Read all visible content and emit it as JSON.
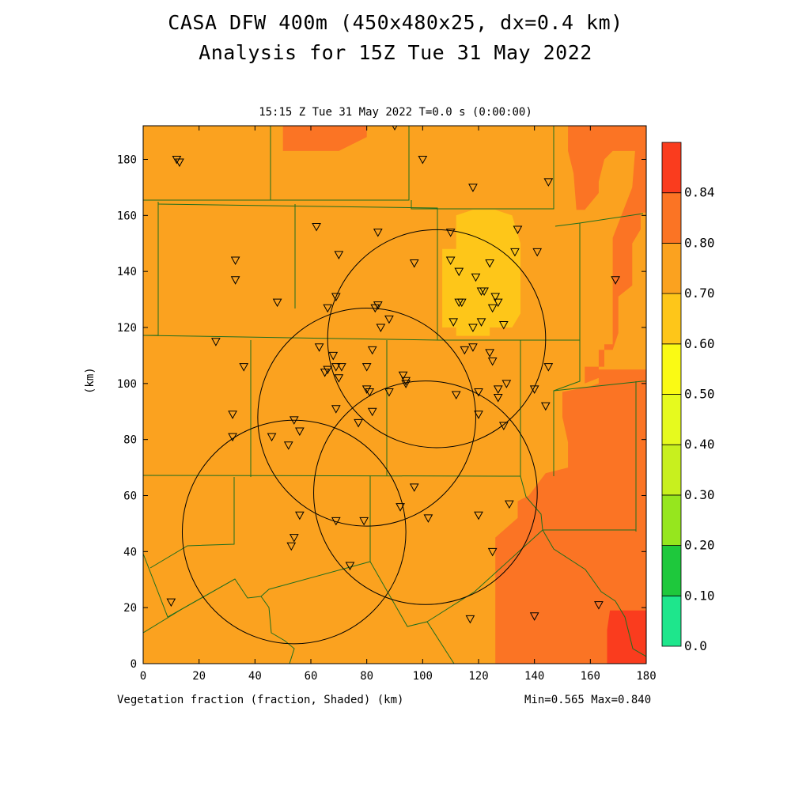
{
  "title_line1": "CASA DFW 400m (450x480x25, dx=0.4 km)",
  "title_line2": "Analysis for 15Z Tue 31 May 2022",
  "subtitle": "15:15 Z Tue 31 May 2022   T=0.0 s (0:00:00)",
  "xlabel": "Vegetation fraction (fraction, Shaded)  (km)",
  "ylabel": "(km)",
  "minmax": "Min=0.565 Max=0.840",
  "colors": {
    "band_050_060": "#fec619",
    "band_060_070": "#fba21f",
    "band_070_080": "#fb7424",
    "band_080_084": "#fa3c1e",
    "county_lines": "#1e6e1e"
  },
  "chart_data": {
    "type": "heatmap",
    "variable": "Vegetation fraction",
    "units": "fraction",
    "xlim": [
      0,
      180
    ],
    "ylim": [
      0,
      192
    ],
    "x_ticks": [
      0,
      20,
      40,
      60,
      80,
      100,
      120,
      140,
      160,
      180
    ],
    "y_ticks": [
      0,
      20,
      40,
      60,
      80,
      100,
      120,
      140,
      160,
      180
    ],
    "colorbar": {
      "levels": [
        0.0,
        0.1,
        0.2,
        0.3,
        0.4,
        0.5,
        0.6,
        0.7,
        0.8,
        0.84
      ],
      "labels": [
        "0.0",
        "0.10",
        "0.20",
        "0.30",
        "0.40",
        "0.50",
        "0.60",
        "0.70",
        "0.80",
        "0.84"
      ],
      "colors": [
        "#1ee68c",
        "#1ec83c",
        "#96e61e",
        "#c8f01e",
        "#e6fa1e",
        "#fafa14",
        "#fec619",
        "#fba21f",
        "#fb7424",
        "#fa3c1e"
      ]
    },
    "min": 0.565,
    "max": 0.84,
    "background_value": 0.65,
    "regions": [
      {
        "value": 0.55,
        "polygon": [
          [
            107,
            148
          ],
          [
            107,
            120
          ],
          [
            112,
            120
          ],
          [
            112,
            117
          ],
          [
            124,
            117
          ],
          [
            124,
            120
          ],
          [
            132,
            120
          ],
          [
            135,
            125
          ],
          [
            135,
            150
          ],
          [
            132,
            160
          ],
          [
            126,
            162
          ],
          [
            118,
            162
          ],
          [
            112,
            160
          ],
          [
            112,
            148
          ]
        ]
      },
      {
        "value": 0.75,
        "polygon": [
          [
            5,
            192
          ],
          [
            50,
            192
          ],
          [
            50,
            183
          ],
          [
            70,
            183
          ],
          [
            80,
            188
          ],
          [
            80,
            192
          ],
          [
            5,
            192
          ],
          [
            5,
            188
          ]
        ]
      },
      {
        "value": 0.75,
        "polygon": [
          [
            152,
            192
          ],
          [
            180,
            192
          ],
          [
            180,
            161
          ],
          [
            178,
            161
          ],
          [
            178,
            155
          ],
          [
            175,
            150
          ],
          [
            175,
            135
          ],
          [
            170,
            131
          ],
          [
            170,
            118
          ],
          [
            168,
            112
          ],
          [
            163,
            112
          ],
          [
            163,
            100
          ],
          [
            160,
            99
          ],
          [
            150,
            97
          ],
          [
            150,
            93
          ],
          [
            150,
            88
          ],
          [
            152,
            79
          ],
          [
            152,
            70
          ],
          [
            144,
            68
          ],
          [
            138,
            60
          ],
          [
            134,
            58
          ],
          [
            134,
            52
          ],
          [
            126,
            45
          ],
          [
            126,
            0
          ],
          [
            165,
            0
          ],
          [
            180,
            0
          ],
          [
            180,
            105
          ],
          [
            163,
            105
          ],
          [
            163,
            102
          ],
          [
            158,
            100
          ],
          [
            158,
            106
          ],
          [
            165,
            106
          ],
          [
            165,
            114
          ],
          [
            168,
            114
          ],
          [
            168,
            152
          ],
          [
            175,
            170
          ],
          [
            176,
            183
          ],
          [
            168,
            183
          ],
          [
            165,
            180
          ],
          [
            163,
            172
          ],
          [
            163,
            168
          ],
          [
            158,
            162
          ],
          [
            155,
            162
          ],
          [
            154,
            175
          ],
          [
            152,
            183
          ]
        ]
      },
      {
        "value": 0.82,
        "polygon": [
          [
            166,
            0
          ],
          [
            166,
            12
          ],
          [
            167,
            19
          ],
          [
            174,
            19
          ],
          [
            180,
            19
          ],
          [
            180,
            0
          ]
        ]
      }
    ],
    "radar_circles": [
      {
        "center": [
          105,
          116
        ],
        "radius_km": 39
      },
      {
        "center": [
          80,
          88
        ],
        "radius_km": 39
      },
      {
        "center": [
          101,
          61
        ],
        "radius_km": 40
      },
      {
        "center": [
          54,
          47
        ],
        "radius_km": 40
      }
    ],
    "stations": [
      [
        90,
        192
      ],
      [
        12,
        180
      ],
      [
        13,
        179
      ],
      [
        100,
        180
      ],
      [
        145,
        172
      ],
      [
        118,
        170
      ],
      [
        62,
        156
      ],
      [
        84,
        154
      ],
      [
        110,
        154
      ],
      [
        134,
        155
      ],
      [
        70,
        146
      ],
      [
        133,
        147
      ],
      [
        141,
        147
      ],
      [
        33,
        144
      ],
      [
        97,
        143
      ],
      [
        110,
        144
      ],
      [
        124,
        143
      ],
      [
        33,
        137
      ],
      [
        113,
        140
      ],
      [
        119,
        138
      ],
      [
        169,
        137
      ],
      [
        121,
        133
      ],
      [
        122,
        133
      ],
      [
        48,
        129
      ],
      [
        69,
        131
      ],
      [
        113,
        129
      ],
      [
        114,
        129
      ],
      [
        126,
        131
      ],
      [
        127,
        129
      ],
      [
        125,
        127
      ],
      [
        66,
        127
      ],
      [
        84,
        128
      ],
      [
        83,
        127
      ],
      [
        88,
        123
      ],
      [
        111,
        122
      ],
      [
        121,
        122
      ],
      [
        129,
        121
      ],
      [
        85,
        120
      ],
      [
        118,
        120
      ],
      [
        26,
        115
      ],
      [
        63,
        113
      ],
      [
        82,
        112
      ],
      [
        115,
        112
      ],
      [
        118,
        113
      ],
      [
        124,
        111
      ],
      [
        125,
        108
      ],
      [
        68,
        110
      ],
      [
        36,
        106
      ],
      [
        66,
        105
      ],
      [
        69,
        106
      ],
      [
        71,
        106
      ],
      [
        80,
        106
      ],
      [
        145,
        106
      ],
      [
        65,
        104
      ],
      [
        93,
        103
      ],
      [
        94,
        101
      ],
      [
        70,
        102
      ],
      [
        94,
        100
      ],
      [
        130,
        100
      ],
      [
        88,
        97
      ],
      [
        80,
        98
      ],
      [
        81,
        97
      ],
      [
        112,
        96
      ],
      [
        120,
        97
      ],
      [
        127,
        98
      ],
      [
        140,
        98
      ],
      [
        127,
        95
      ],
      [
        69,
        91
      ],
      [
        32,
        89
      ],
      [
        82,
        90
      ],
      [
        144,
        92
      ],
      [
        120,
        89
      ],
      [
        77,
        86
      ],
      [
        129,
        85
      ],
      [
        54,
        87
      ],
      [
        56,
        83
      ],
      [
        32,
        81
      ],
      [
        46,
        81
      ],
      [
        52,
        78
      ],
      [
        97,
        63
      ],
      [
        131,
        57
      ],
      [
        92,
        56
      ],
      [
        56,
        53
      ],
      [
        69,
        51
      ],
      [
        79,
        51
      ],
      [
        102,
        52
      ],
      [
        120,
        53
      ],
      [
        54,
        45
      ],
      [
        53,
        42
      ],
      [
        125,
        40
      ],
      [
        74,
        35
      ],
      [
        10,
        22
      ],
      [
        163,
        21
      ],
      [
        140,
        17
      ],
      [
        117,
        16
      ]
    ]
  }
}
